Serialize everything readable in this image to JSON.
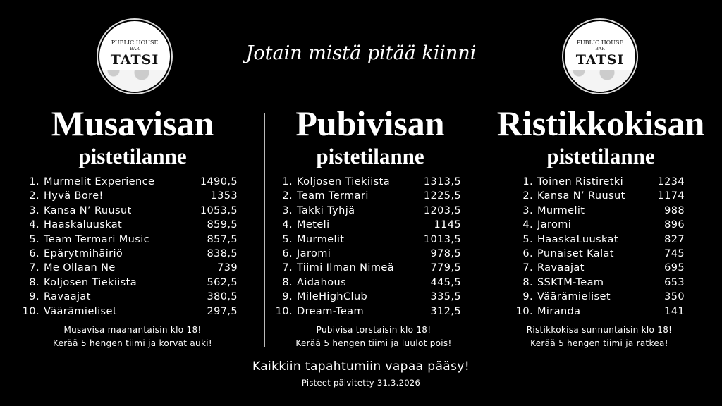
{
  "logo": {
    "line1": "PUBLIC HOUSE",
    "line2": "BAR",
    "line3": "TATSI"
  },
  "tagline": "Jotain mistä pitää kiinni",
  "columns": [
    {
      "title": "Musavisan",
      "subtitle": "pistetilanne",
      "rows": [
        {
          "rank": "1.",
          "team": "Murmelit Experience",
          "score": "1490,5"
        },
        {
          "rank": "2.",
          "team": "Hyvä Bore!",
          "score": "1353"
        },
        {
          "rank": "3.",
          "team": "Kansa N’ Ruusut",
          "score": "1053,5"
        },
        {
          "rank": "4.",
          "team": "Haaskaluuskat",
          "score": "859,5"
        },
        {
          "rank": "5.",
          "team": "Team Termari Music",
          "score": "857,5"
        },
        {
          "rank": "6.",
          "team": "Epärytmihäiriö",
          "score": "838,5"
        },
        {
          "rank": "7.",
          "team": "Me Ollaan Ne",
          "score": "739"
        },
        {
          "rank": "8.",
          "team": "Koljosen Tiekiista",
          "score": "562,5"
        },
        {
          "rank": "9.",
          "team": "Ravaajat",
          "score": "380,5"
        },
        {
          "rank": "10.",
          "team": "Väärämieliset",
          "score": "297,5"
        }
      ],
      "note1": "Musavisa maanantaisin klo 18!",
      "note2": "Kerää 5 hengen tiimi ja korvat auki!"
    },
    {
      "title": "Pubivisan",
      "subtitle": "pistetilanne",
      "rows": [
        {
          "rank": "1.",
          "team": "Koljosen Tiekiista",
          "score": "1313,5"
        },
        {
          "rank": "2.",
          "team": "Team Termari",
          "score": "1225,5"
        },
        {
          "rank": "3.",
          "team": "Takki Tyhjä",
          "score": "1203,5"
        },
        {
          "rank": "4.",
          "team": "Meteli",
          "score": "1145"
        },
        {
          "rank": "5.",
          "team": "Murmelit",
          "score": "1013,5"
        },
        {
          "rank": "6.",
          "team": "Jaromi",
          "score": "978,5"
        },
        {
          "rank": "7.",
          "team": "Tiimi Ilman Nimeä",
          "score": "779,5"
        },
        {
          "rank": "8.",
          "team": "Aidahous",
          "score": "445,5"
        },
        {
          "rank": "9.",
          "team": "MileHighClub",
          "score": "335,5"
        },
        {
          "rank": "10.",
          "team": "Dream-Team",
          "score": "312,5"
        }
      ],
      "note1": "Pubivisa torstaisin klo 18!",
      "note2": "Kerää 5 hengen tiimi ja luulot pois!"
    },
    {
      "title": "Ristikkokisan",
      "subtitle": "pistetilanne",
      "rows": [
        {
          "rank": "1.",
          "team": "Toinen Ristiretki",
          "score": "1234"
        },
        {
          "rank": "2.",
          "team": "Kansa N’ Ruusut",
          "score": "1174"
        },
        {
          "rank": "3.",
          "team": "Murmelit",
          "score": "988"
        },
        {
          "rank": "4.",
          "team": "Jaromi",
          "score": "896"
        },
        {
          "rank": "5.",
          "team": "HaaskaLuuskat",
          "score": "827"
        },
        {
          "rank": "6.",
          "team": "Punaiset Kalat",
          "score": "745"
        },
        {
          "rank": "7.",
          "team": "Ravaajat",
          "score": "695"
        },
        {
          "rank": "8.",
          "team": "SSKTM-Team",
          "score": "653"
        },
        {
          "rank": "9.",
          "team": "Väärämieliset",
          "score": "350"
        },
        {
          "rank": "10.",
          "team": "Miranda",
          "score": "141"
        }
      ],
      "note1": "Ristikkokisa sunnuntaisin klo 18!",
      "note2": "Kerää 5 hengen tiimi ja ratkea!"
    }
  ],
  "footer": {
    "free_entry": "Kaikkiin tapahtumiin vapaa pääsy!",
    "updated": "Pisteet päivitetty 31.3.2026"
  }
}
